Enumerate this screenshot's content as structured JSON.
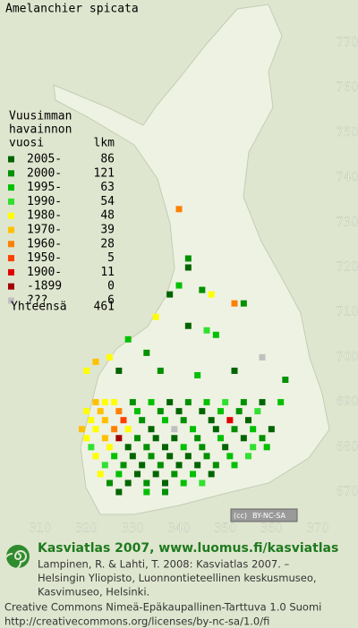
{
  "title": "Amelanchier spicata",
  "legend": {
    "header": [
      "Vuusimman",
      "havainnon"
    ],
    "col_heads": [
      "vuosi",
      "lkm"
    ],
    "classes": [
      {
        "label": "2005-",
        "count": 86,
        "color": "#006400"
      },
      {
        "label": "2000-",
        "count": 121,
        "color": "#009000"
      },
      {
        "label": "1995-",
        "count": 63,
        "color": "#00c000"
      },
      {
        "label": "1990-",
        "count": 54,
        "color": "#30e030"
      },
      {
        "label": "1980-",
        "count": 48,
        "color": "#ffff00"
      },
      {
        "label": "1970-",
        "count": 39,
        "color": "#ffc000"
      },
      {
        "label": "1960-",
        "count": 28,
        "color": "#ff8000"
      },
      {
        "label": "1950-",
        "count": 5,
        "color": "#ff4000"
      },
      {
        "label": "1900-",
        "count": 11,
        "color": "#e00000"
      },
      {
        "label": "-1899",
        "count": 0,
        "color": "#a00000"
      },
      {
        "label": "???",
        "count": 6,
        "color": "#c0c0c0"
      }
    ],
    "total_label": "Yhteensä",
    "total": 461
  },
  "xlim": [
    310,
    370
  ],
  "ylim": [
    670,
    770
  ],
  "xticks": [
    310,
    320,
    330,
    340,
    350,
    360,
    370
  ],
  "yticks": [
    770,
    760,
    750,
    740,
    730,
    720,
    710,
    700,
    690,
    680,
    670
  ],
  "squares": [
    [
      340,
      733,
      6
    ],
    [
      342,
      722,
      1
    ],
    [
      342,
      720,
      0
    ],
    [
      340,
      716,
      2
    ],
    [
      338,
      714,
      0
    ],
    [
      345,
      715,
      1
    ],
    [
      347,
      714,
      4
    ],
    [
      354,
      712,
      1
    ],
    [
      352,
      712,
      6
    ],
    [
      346,
      706,
      3
    ],
    [
      348,
      705,
      2
    ],
    [
      342,
      707,
      0
    ],
    [
      335,
      709,
      4
    ],
    [
      329,
      704,
      2
    ],
    [
      333,
      701,
      1
    ],
    [
      325,
      700,
      4
    ],
    [
      322,
      699,
      5
    ],
    [
      320,
      697,
      4
    ],
    [
      327,
      697,
      0
    ],
    [
      336,
      697,
      1
    ],
    [
      344,
      696,
      2
    ],
    [
      352,
      697,
      0
    ],
    [
      358,
      700,
      10
    ],
    [
      363,
      695,
      1
    ],
    [
      322,
      690,
      5
    ],
    [
      324,
      690,
      4
    ],
    [
      326,
      690,
      4
    ],
    [
      330,
      690,
      1
    ],
    [
      334,
      690,
      2
    ],
    [
      338,
      690,
      0
    ],
    [
      342,
      690,
      1
    ],
    [
      346,
      690,
      2
    ],
    [
      350,
      690,
      3
    ],
    [
      354,
      690,
      1
    ],
    [
      358,
      690,
      0
    ],
    [
      362,
      690,
      2
    ],
    [
      320,
      688,
      4
    ],
    [
      323,
      688,
      5
    ],
    [
      327,
      688,
      6
    ],
    [
      331,
      688,
      2
    ],
    [
      336,
      688,
      1
    ],
    [
      340,
      688,
      0
    ],
    [
      345,
      688,
      0
    ],
    [
      349,
      688,
      2
    ],
    [
      353,
      688,
      1
    ],
    [
      357,
      688,
      3
    ],
    [
      321,
      686,
      4
    ],
    [
      324,
      686,
      5
    ],
    [
      328,
      686,
      7
    ],
    [
      332,
      686,
      1
    ],
    [
      337,
      686,
      2
    ],
    [
      341,
      686,
      1
    ],
    [
      347,
      686,
      0
    ],
    [
      351,
      686,
      8
    ],
    [
      355,
      686,
      0
    ],
    [
      319,
      684,
      5
    ],
    [
      322,
      684,
      4
    ],
    [
      326,
      684,
      6
    ],
    [
      329,
      684,
      4
    ],
    [
      334,
      684,
      0
    ],
    [
      339,
      684,
      10
    ],
    [
      343,
      684,
      2
    ],
    [
      348,
      684,
      0
    ],
    [
      352,
      684,
      1
    ],
    [
      356,
      684,
      2
    ],
    [
      360,
      684,
      0
    ],
    [
      320,
      682,
      4
    ],
    [
      324,
      682,
      5
    ],
    [
      327,
      682,
      9
    ],
    [
      331,
      682,
      1
    ],
    [
      335,
      682,
      0
    ],
    [
      339,
      682,
      0
    ],
    [
      344,
      682,
      1
    ],
    [
      349,
      682,
      2
    ],
    [
      354,
      682,
      0
    ],
    [
      358,
      682,
      1
    ],
    [
      321,
      680,
      3
    ],
    [
      325,
      680,
      4
    ],
    [
      329,
      680,
      0
    ],
    [
      333,
      680,
      1
    ],
    [
      337,
      680,
      0
    ],
    [
      341,
      680,
      2
    ],
    [
      345,
      680,
      1
    ],
    [
      350,
      680,
      0
    ],
    [
      356,
      680,
      3
    ],
    [
      359,
      680,
      2
    ],
    [
      322,
      678,
      4
    ],
    [
      326,
      678,
      2
    ],
    [
      330,
      678,
      0
    ],
    [
      334,
      678,
      1
    ],
    [
      338,
      678,
      0
    ],
    [
      342,
      678,
      0
    ],
    [
      346,
      678,
      1
    ],
    [
      351,
      678,
      2
    ],
    [
      355,
      678,
      3
    ],
    [
      324,
      676,
      3
    ],
    [
      328,
      676,
      1
    ],
    [
      332,
      676,
      0
    ],
    [
      336,
      676,
      1
    ],
    [
      340,
      676,
      0
    ],
    [
      344,
      676,
      0
    ],
    [
      348,
      676,
      1
    ],
    [
      352,
      676,
      2
    ],
    [
      323,
      674,
      4
    ],
    [
      327,
      674,
      2
    ],
    [
      331,
      674,
      0
    ],
    [
      335,
      674,
      0
    ],
    [
      339,
      674,
      1
    ],
    [
      343,
      674,
      2
    ],
    [
      347,
      674,
      0
    ],
    [
      325,
      672,
      1
    ],
    [
      329,
      672,
      0
    ],
    [
      333,
      672,
      1
    ],
    [
      337,
      672,
      0
    ],
    [
      341,
      672,
      2
    ],
    [
      345,
      672,
      3
    ],
    [
      327,
      670,
      0
    ],
    [
      333,
      670,
      2
    ],
    [
      337,
      670,
      1
    ]
  ],
  "cc_badge": [
    "(cc)",
    "BY-NC-SA"
  ],
  "footer": {
    "heading": "Kasviatlas 2007, www.luomus.fi/kasviatlas",
    "citation": [
      "Lampinen, R. & Lahti, T. 2008: Kasviatlas 2007. –",
      "Helsingin Yliopisto, Luonnontieteellinen keskusmuseo,",
      "Kasvimuseo, Helsinki."
    ],
    "license": [
      "Creative Commons Nimeä-Epäkaupallinen-Tarttuva 1.0 Suomi",
      "http://creativecommons.org/licenses/by-nc-sa/1.0/fi"
    ]
  }
}
